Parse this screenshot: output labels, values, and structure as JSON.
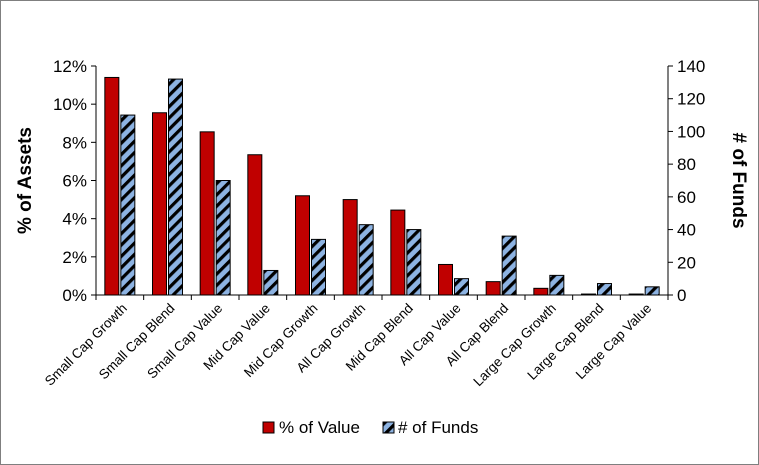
{
  "chart_data": {
    "type": "bar",
    "categories": [
      "Small Cap Growth",
      "Small Cap Blend",
      "Small Cap Value",
      "Mid Cap Value",
      "Mid Cap Growth",
      "All Cap Growth",
      "Mid Cap Blend",
      "All Cap Value",
      "All Cap Blend",
      "Large Cap Growth",
      "Large Cap Blend",
      "Large Cap Value"
    ],
    "series": [
      {
        "name": "% of Value",
        "axis": "left",
        "color": "#c00000",
        "values": [
          11.4,
          9.55,
          8.55,
          7.35,
          5.2,
          5.0,
          4.45,
          1.6,
          0.7,
          0.35,
          0.05,
          0.05
        ]
      },
      {
        "name": "# of Funds",
        "axis": "right",
        "color": "#8db3e2",
        "hatch_color": "#000000",
        "values": [
          110,
          132,
          70,
          15,
          34,
          43,
          40,
          10,
          36,
          12,
          7,
          5
        ]
      }
    ],
    "y_left": {
      "label": "% of Assets",
      "ylim": [
        0,
        12
      ],
      "ticks": [
        0,
        2,
        4,
        6,
        8,
        10,
        12
      ],
      "tick_labels": [
        "0%",
        "2%",
        "4%",
        "6%",
        "8%",
        "10%",
        "12%"
      ]
    },
    "y_right": {
      "label": "# of Funds",
      "ylim": [
        0,
        140
      ],
      "ticks": [
        0,
        20,
        40,
        60,
        80,
        100,
        120,
        140
      ],
      "tick_labels": [
        "0",
        "20",
        "40",
        "60",
        "80",
        "100",
        "120",
        "140"
      ]
    },
    "xlabel": "",
    "grid": false,
    "legend_position": "bottom"
  }
}
